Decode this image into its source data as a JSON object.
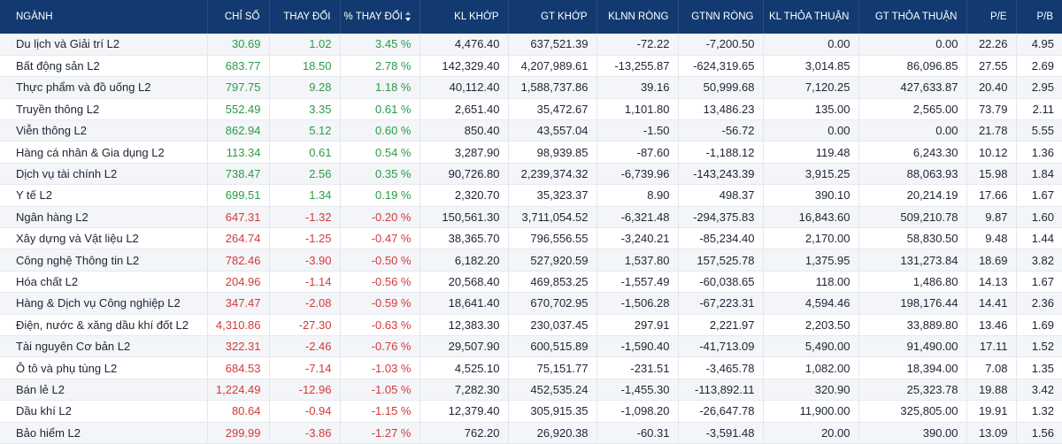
{
  "colors": {
    "header_bg": "#123a70",
    "positive": "#2a9b47",
    "negative": "#d33a3a",
    "row_alt": "#f3f5f8"
  },
  "columns": [
    {
      "key": "nganh",
      "label": "NGÀNH"
    },
    {
      "key": "chi_so",
      "label": "CHỈ SỐ"
    },
    {
      "key": "thay_doi",
      "label": "THAY ĐỔI"
    },
    {
      "key": "pct_thay_doi",
      "label": "% THAY ĐỔI",
      "sort": "sort-desc-icon"
    },
    {
      "key": "kl_khop",
      "label": "KL KHỚP"
    },
    {
      "key": "gt_khop",
      "label": "GT KHỚP"
    },
    {
      "key": "klnn_rong",
      "label": "KLNN RÒNG"
    },
    {
      "key": "gtnn_rong",
      "label": "GTNN RÒNG"
    },
    {
      "key": "kl_thoa_thuan",
      "label": "KL THỎA THUẬN"
    },
    {
      "key": "gt_thoa_thuan",
      "label": "GT THỎA THUẬN"
    },
    {
      "key": "pe",
      "label": "P/E"
    },
    {
      "key": "pb",
      "label": "P/B"
    }
  ],
  "rows": [
    {
      "trend": "up",
      "cells": [
        "Du lịch và Giải trí L2",
        "30.69",
        "1.02",
        "3.45 %",
        "4,476.40",
        "637,521.39",
        "-72.22",
        "-7,200.50",
        "0.00",
        "0.00",
        "22.26",
        "4.95"
      ]
    },
    {
      "trend": "up",
      "cells": [
        "Bất động sản L2",
        "683.77",
        "18.50",
        "2.78 %",
        "142,329.40",
        "4,207,989.61",
        "-13,255.87",
        "-624,319.65",
        "3,014.85",
        "86,096.85",
        "27.55",
        "2.69"
      ]
    },
    {
      "trend": "up",
      "cells": [
        "Thực phẩm và đồ uống L2",
        "797.75",
        "9.28",
        "1.18 %",
        "40,112.40",
        "1,588,737.86",
        "39.16",
        "50,999.68",
        "7,120.25",
        "427,633.87",
        "20.40",
        "2.95"
      ]
    },
    {
      "trend": "up",
      "cells": [
        "Truyền thông L2",
        "552.49",
        "3.35",
        "0.61 %",
        "2,651.40",
        "35,472.67",
        "1,101.80",
        "13,486.23",
        "135.00",
        "2,565.00",
        "73.79",
        "2.11"
      ]
    },
    {
      "trend": "up",
      "cells": [
        "Viễn thông L2",
        "862.94",
        "5.12",
        "0.60 %",
        "850.40",
        "43,557.04",
        "-1.50",
        "-56.72",
        "0.00",
        "0.00",
        "21.78",
        "5.55"
      ]
    },
    {
      "trend": "up",
      "cells": [
        "Hàng cá nhân & Gia dụng L2",
        "113.34",
        "0.61",
        "0.54 %",
        "3,287.90",
        "98,939.85",
        "-87.60",
        "-1,188.12",
        "119.48",
        "6,243.30",
        "10.12",
        "1.36"
      ]
    },
    {
      "trend": "up",
      "cells": [
        "Dịch vụ tài chính L2",
        "738.47",
        "2.56",
        "0.35 %",
        "90,726.80",
        "2,239,374.32",
        "-6,739.96",
        "-143,243.39",
        "3,915.25",
        "88,063.93",
        "15.98",
        "1.84"
      ]
    },
    {
      "trend": "up",
      "cells": [
        "Y tế L2",
        "699.51",
        "1.34",
        "0.19 %",
        "2,320.70",
        "35,323.37",
        "8.90",
        "498.37",
        "390.10",
        "20,214.19",
        "17.66",
        "1.67"
      ]
    },
    {
      "trend": "down",
      "cells": [
        "Ngân hàng L2",
        "647.31",
        "-1.32",
        "-0.20 %",
        "150,561.30",
        "3,711,054.52",
        "-6,321.48",
        "-294,375.83",
        "16,843.60",
        "509,210.78",
        "9.87",
        "1.60"
      ]
    },
    {
      "trend": "down",
      "cells": [
        "Xây dựng và Vật liệu L2",
        "264.74",
        "-1.25",
        "-0.47 %",
        "38,365.70",
        "796,556.55",
        "-3,240.21",
        "-85,234.40",
        "2,170.00",
        "58,830.50",
        "9.48",
        "1.44"
      ]
    },
    {
      "trend": "down",
      "cells": [
        "Công nghệ Thông tin L2",
        "782.46",
        "-3.90",
        "-0.50 %",
        "6,182.20",
        "527,920.59",
        "1,537.80",
        "157,525.78",
        "1,375.95",
        "131,273.84",
        "18.69",
        "3.82"
      ]
    },
    {
      "trend": "down",
      "cells": [
        "Hóa chất L2",
        "204.96",
        "-1.14",
        "-0.56 %",
        "20,568.40",
        "469,853.25",
        "-1,557.49",
        "-60,038.65",
        "118.00",
        "1,486.80",
        "14.13",
        "1.67"
      ]
    },
    {
      "trend": "down",
      "cells": [
        "Hàng & Dịch vụ Công nghiệp L2",
        "347.47",
        "-2.08",
        "-0.59 %",
        "18,641.40",
        "670,702.95",
        "-1,506.28",
        "-67,223.31",
        "4,594.46",
        "198,176.44",
        "14.41",
        "2.36"
      ]
    },
    {
      "trend": "down",
      "cells": [
        "Điện, nước & xăng dầu khí đốt L2",
        "4,310.86",
        "-27.30",
        "-0.63 %",
        "12,383.30",
        "230,037.45",
        "297.91",
        "2,221.97",
        "2,203.50",
        "33,889.80",
        "13.46",
        "1.69"
      ]
    },
    {
      "trend": "down",
      "cells": [
        "Tài nguyên Cơ bản L2",
        "322.31",
        "-2.46",
        "-0.76 %",
        "29,507.90",
        "600,515.89",
        "-1,590.40",
        "-41,713.09",
        "5,490.00",
        "91,490.00",
        "17.11",
        "1.52"
      ]
    },
    {
      "trend": "down",
      "cells": [
        "Ô tô và phụ tùng L2",
        "684.53",
        "-7.14",
        "-1.03 %",
        "4,525.10",
        "75,151.77",
        "-231.51",
        "-3,465.78",
        "1,082.00",
        "18,394.00",
        "7.08",
        "1.35"
      ]
    },
    {
      "trend": "down",
      "cells": [
        "Bán lẻ L2",
        "1,224.49",
        "-12.96",
        "-1.05 %",
        "7,282.30",
        "452,535.24",
        "-1,455.30",
        "-113,892.11",
        "320.90",
        "25,323.78",
        "19.88",
        "3.42"
      ]
    },
    {
      "trend": "down",
      "cells": [
        "Dầu khí L2",
        "80.64",
        "-0.94",
        "-1.15 %",
        "12,379.40",
        "305,915.35",
        "-1,098.20",
        "-26,647.78",
        "11,900.00",
        "325,805.00",
        "19.91",
        "1.32"
      ]
    },
    {
      "trend": "down",
      "cells": [
        "Bảo hiểm L2",
        "299.99",
        "-3.86",
        "-1.27 %",
        "762.20",
        "26,920.38",
        "-60.31",
        "-3,591.48",
        "20.00",
        "390.00",
        "13.09",
        "1.56"
      ]
    }
  ]
}
